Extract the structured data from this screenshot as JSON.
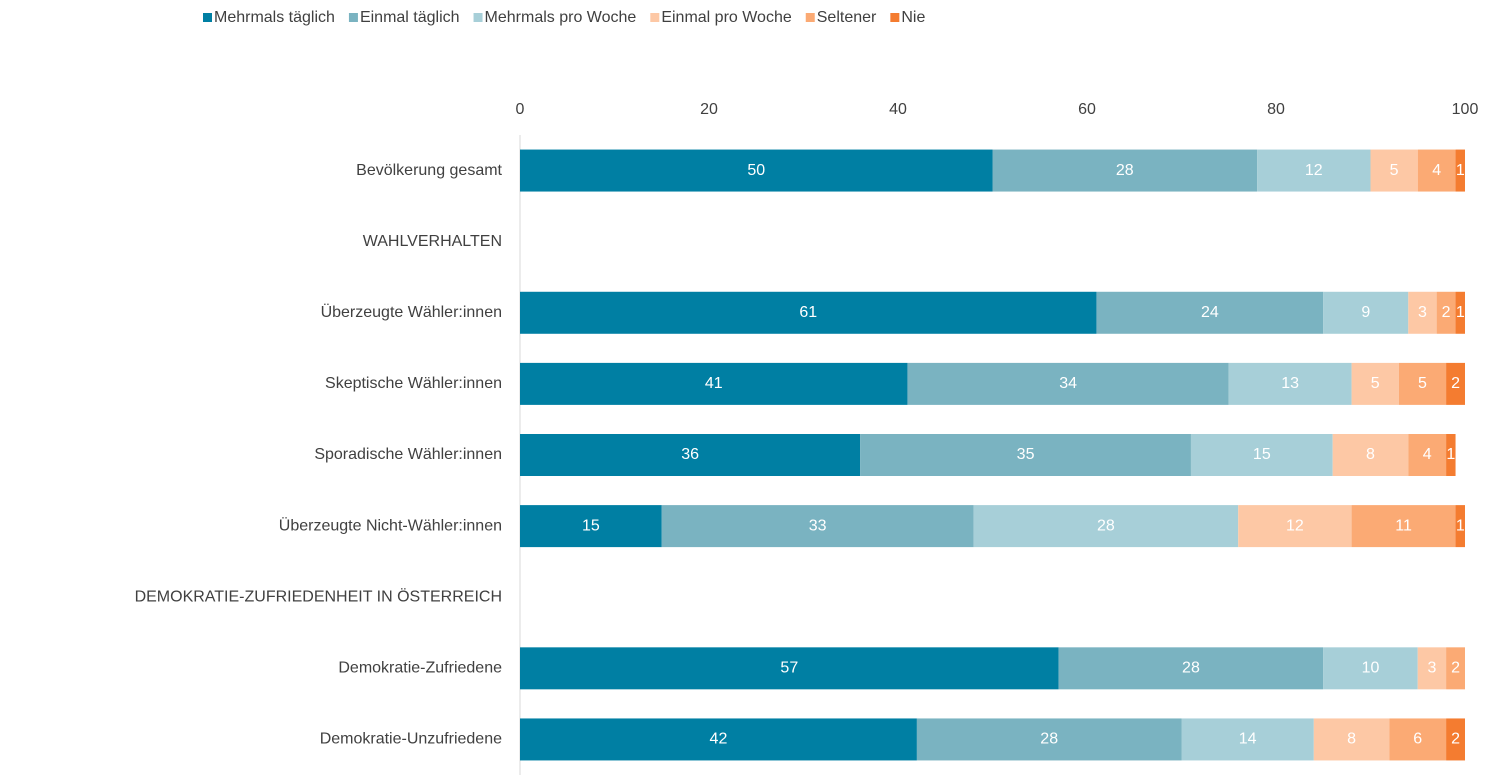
{
  "chart_data": {
    "type": "stacked-bar-horizontal",
    "categories": [
      "Bevölkerung gesamt",
      "WAHLVERHALTEN",
      "Überzeugte Wähler:innen",
      "Skeptische Wähler:innen",
      "Sporadische Wähler:innen",
      "Überzeugte Nicht-Wähler:innen",
      "DEMOKRATIE-ZUFRIEDENHEIT IN ÖSTERREICH",
      "Demokratie-Zufriedene",
      "Demokratie-Unzufriedene"
    ],
    "series": [
      {
        "name": "Mehrmals täglich",
        "color": "#007fa3",
        "values": [
          50,
          null,
          61,
          41,
          36,
          15,
          null,
          57,
          42
        ]
      },
      {
        "name": "Einmal täglich",
        "color": "#7ab3c1",
        "values": [
          28,
          null,
          24,
          34,
          35,
          33,
          null,
          28,
          28
        ]
      },
      {
        "name": "Mehrmals pro Woche",
        "color": "#a7cfd8",
        "values": [
          12,
          null,
          9,
          13,
          15,
          28,
          null,
          10,
          14
        ]
      },
      {
        "name": "Einmal pro Woche",
        "color": "#fdc8a5",
        "values": [
          5,
          null,
          3,
          5,
          8,
          12,
          null,
          3,
          8
        ]
      },
      {
        "name": "Seltener",
        "color": "#fbaa74",
        "values": [
          4,
          null,
          2,
          5,
          4,
          11,
          null,
          2,
          6
        ]
      },
      {
        "name": "Nie",
        "color": "#f47c30",
        "values": [
          1,
          null,
          1,
          2,
          1,
          1,
          null,
          null,
          2
        ]
      }
    ],
    "xlim": [
      0,
      100
    ],
    "xticks": [
      0,
      20,
      40,
      60,
      80,
      100
    ],
    "grid": false,
    "legend": "top"
  }
}
